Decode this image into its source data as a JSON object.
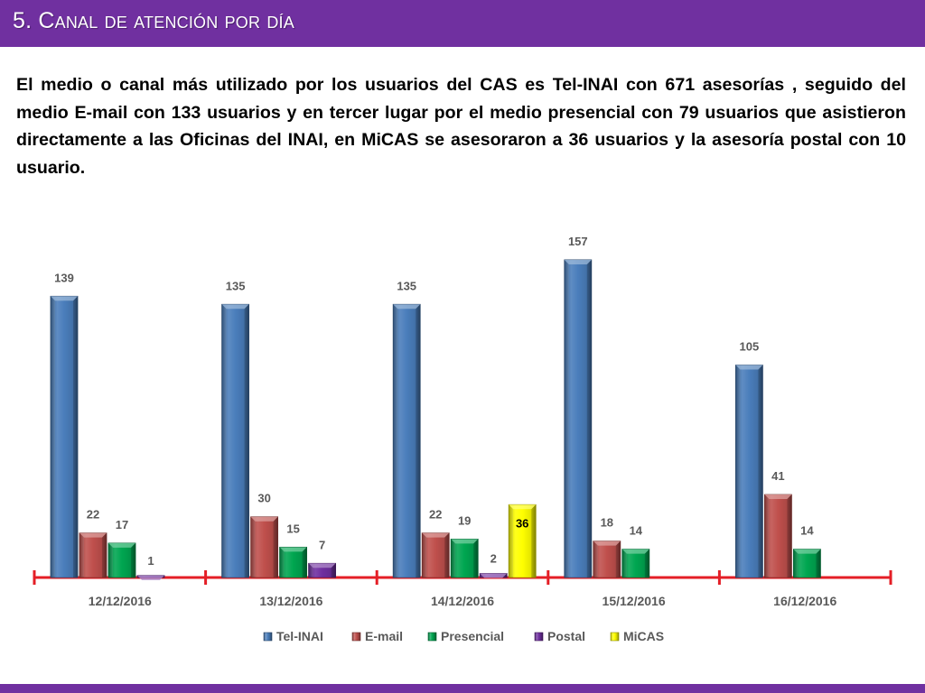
{
  "slide": {
    "title": "5. Canal de atención por día",
    "paragraph": "El medio o canal más utilizado por los usuarios del CAS es Tel-INAI con 671 asesorías , seguido del medio E-mail con 133 usuarios y en tercer lugar por el medio presencial con 79 usuarios que  asistieron directamente a las Oficinas del INAI, en MiCAS se asesoraron a 36 usuarios y la asesoría postal con 10 usuario."
  },
  "colors": {
    "banner": "#7030a0",
    "axis": "#e41e26",
    "label_text": "#595959"
  },
  "chart_data": {
    "type": "bar",
    "categories": [
      "12/12/2016",
      "13/12/2016",
      "14/12/2016",
      "15/12/2016",
      "16/12/2016"
    ],
    "series": [
      {
        "name": "Tel-INAI",
        "color": "#4a7ebb",
        "values": [
          139,
          135,
          135,
          157,
          105
        ]
      },
      {
        "name": "E-mail",
        "color": "#c0504d",
        "values": [
          22,
          30,
          22,
          18,
          41
        ]
      },
      {
        "name": "Presencial",
        "color": "#00a651",
        "values": [
          17,
          15,
          19,
          14,
          14
        ]
      },
      {
        "name": "Postal",
        "color": "#7030a0",
        "values": [
          1,
          7,
          2,
          null,
          null
        ]
      },
      {
        "name": "MiCAS",
        "color": "#ffff00",
        "values": [
          null,
          null,
          36,
          null,
          null
        ]
      }
    ],
    "ylim": [
      0,
      165
    ],
    "grid": false,
    "legend": "bottom"
  }
}
